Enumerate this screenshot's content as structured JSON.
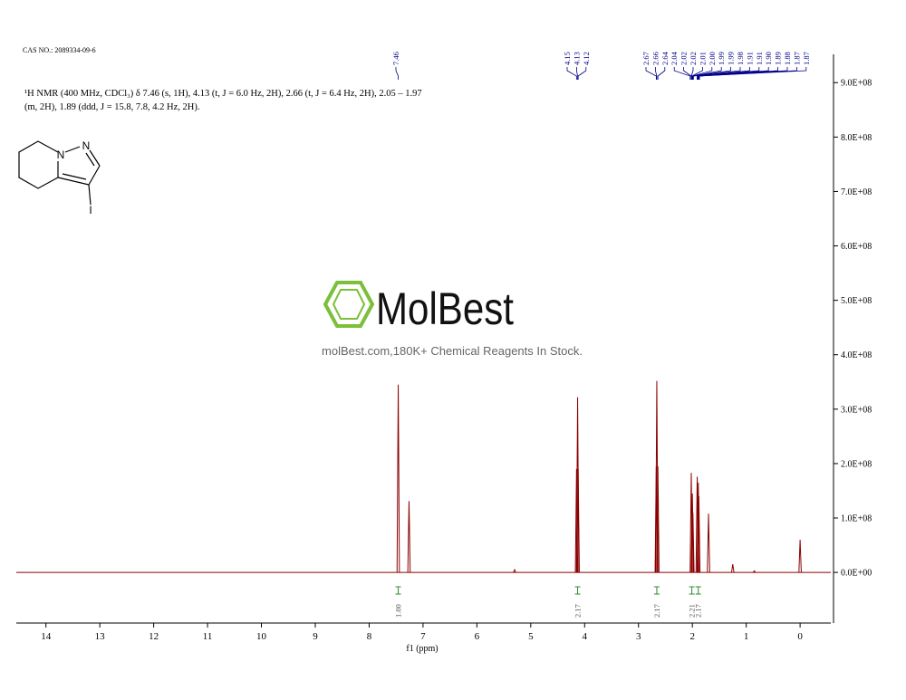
{
  "cas": "CAS NO.: 2089334-09-6",
  "nmr_text": [
    "¹H NMR (400 MHz, CDCl₃) δ 7.46 (s, 1H), 4.13 (t, J = 6.0 Hz, 2H), 2.66 (t, J = 6.4 Hz, 2H), 2.05 – 1.97",
    "(m, 2H), 1.89 (ddd, J = 15.8, 7.8, 4.2 Hz, 2H)."
  ],
  "structure": {
    "atoms": [
      "N",
      "N",
      "I"
    ]
  },
  "watermark": {
    "brand": "MolBest",
    "tagline": "molBest.com,180K+ Chemical Reagents In Stock."
  },
  "chart_data": {
    "type": "spectrum",
    "color": "#8b0000",
    "x_label": "f1 (ppm)",
    "xlim": [
      14.55,
      -0.57
    ],
    "xticks": [
      14,
      13,
      12,
      11,
      10,
      9,
      8,
      7,
      6,
      5,
      4,
      3,
      2,
      1,
      0
    ],
    "ylim": [
      -93000000,
      952000000
    ],
    "yticks": [
      {
        "value": 0,
        "label": "0.0E+00"
      },
      {
        "value": 100000000,
        "label": "1.0E+08"
      },
      {
        "value": 200000000,
        "label": "2.0E+08"
      },
      {
        "value": 300000000,
        "label": "3.0E+08"
      },
      {
        "value": 400000000,
        "label": "4.0E+08"
      },
      {
        "value": 500000000,
        "label": "5.0E+08"
      },
      {
        "value": 600000000,
        "label": "6.0E+08"
      },
      {
        "value": 700000000,
        "label": "7.0E+08"
      },
      {
        "value": 800000000,
        "label": "8.0E+08"
      },
      {
        "value": 900000000,
        "label": "9.0E+08"
      }
    ],
    "x": [
      7.46,
      7.26,
      5.3,
      4.15,
      4.13,
      4.12,
      2.67,
      2.66,
      2.64,
      2.02,
      2.0,
      1.99,
      1.91,
      1.89,
      1.88,
      1.7,
      1.25,
      0.85,
      0.0
    ],
    "values": [
      345000000,
      131000000,
      5000000,
      190000000,
      322000000,
      190000000,
      195000000,
      352000000,
      195000000,
      183000000,
      145000000,
      110000000,
      176000000,
      165000000,
      140000000,
      108000000,
      15000000,
      3000000,
      60000000
    ],
    "peak_labels": [
      [
        "7.46"
      ],
      [
        "4.15",
        "4.13",
        "4.12"
      ],
      [
        "2.67",
        "2.66",
        "2.64",
        "2.04",
        "2.02",
        "2.02",
        "2.01",
        "2.00",
        "1.99",
        "1.99",
        "1.98",
        "1.91",
        "1.91",
        "1.90",
        "1.89",
        "1.88",
        "1.87",
        "1.87"
      ]
    ],
    "label_color": "#00008b",
    "integrals": {
      "x": [
        7.46,
        4.13,
        2.66,
        2.01,
        1.89
      ],
      "labels": [
        "1.00",
        "2.17",
        "2.17",
        "2.21",
        "2.17"
      ],
      "color": "#2e8b2e"
    }
  }
}
